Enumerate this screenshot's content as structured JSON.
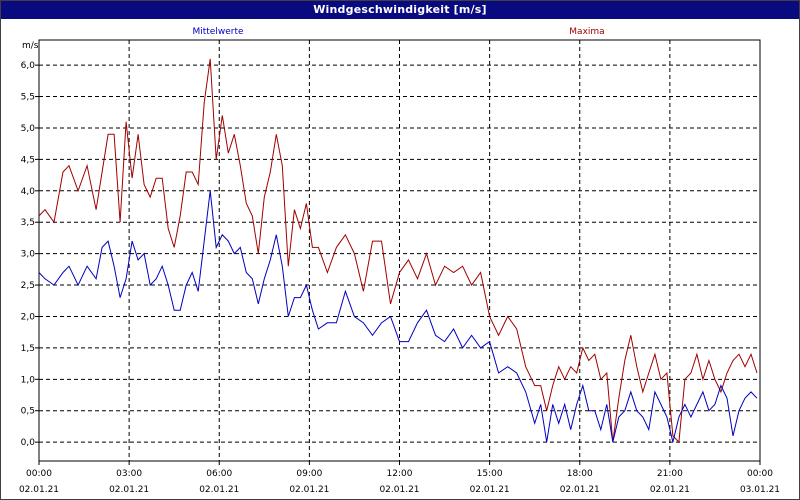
{
  "window": {
    "title": "Windgeschwindigkeit [m/s]"
  },
  "chart_data": {
    "type": "line",
    "title": "Windgeschwindigkeit [m/s]",
    "ylabel": "m/s",
    "xlabel": "",
    "ylim": [
      -0.3,
      6.4
    ],
    "grid": true,
    "legend_placement": "top",
    "y_ticks": [
      "0,0",
      "0,5",
      "1,0",
      "1,5",
      "2,0",
      "2,5",
      "3,0",
      "3,5",
      "4,0",
      "4,5",
      "5,0",
      "5,5",
      "6,0"
    ],
    "x_ticks": [
      {
        "time": "00:00",
        "date": "02.01.21"
      },
      {
        "time": "03:00",
        "date": "02.01.21"
      },
      {
        "time": "06:00",
        "date": "02.01.21"
      },
      {
        "time": "09:00",
        "date": "02.01.21"
      },
      {
        "time": "12:00",
        "date": "02.01.21"
      },
      {
        "time": "15:00",
        "date": "02.01.21"
      },
      {
        "time": "18:00",
        "date": "02.01.21"
      },
      {
        "time": "21:00",
        "date": "02.01.21"
      },
      {
        "time": "00:00",
        "date": "03.01.21"
      }
    ],
    "x_start": "02.01.21 00:00",
    "x_end": "03.01.21 00:00",
    "colors": {
      "mittelwerte": "#0000c0",
      "maxima": "#a00000",
      "grid": "#000000"
    },
    "series": [
      {
        "name": "Mittelwerte",
        "color": "#0000c0",
        "x_hours": [
          0,
          0.2,
          0.5,
          0.8,
          1.0,
          1.3,
          1.6,
          1.9,
          2.1,
          2.3,
          2.5,
          2.7,
          2.9,
          3.1,
          3.3,
          3.5,
          3.7,
          3.9,
          4.1,
          4.3,
          4.5,
          4.7,
          4.9,
          5.1,
          5.3,
          5.5,
          5.7,
          5.9,
          6.1,
          6.3,
          6.5,
          6.7,
          6.9,
          7.1,
          7.3,
          7.5,
          7.7,
          7.9,
          8.1,
          8.3,
          8.5,
          8.7,
          8.9,
          9.1,
          9.3,
          9.6,
          9.9,
          10.2,
          10.5,
          10.8,
          11.1,
          11.4,
          11.7,
          12.0,
          12.3,
          12.6,
          12.9,
          13.2,
          13.5,
          13.8,
          14.1,
          14.4,
          14.7,
          15.0,
          15.3,
          15.6,
          15.9,
          16.2,
          16.5,
          16.7,
          16.9,
          17.1,
          17.3,
          17.5,
          17.7,
          17.9,
          18.1,
          18.3,
          18.5,
          18.7,
          18.9,
          19.1,
          19.3,
          19.5,
          19.7,
          19.9,
          20.1,
          20.3,
          20.5,
          20.7,
          20.9,
          21.1,
          21.3,
          21.5,
          21.7,
          21.9,
          22.1,
          22.3,
          22.5,
          22.7,
          22.9,
          23.1,
          23.3,
          23.5,
          23.7,
          23.9
        ],
        "values": [
          2.7,
          2.6,
          2.5,
          2.7,
          2.8,
          2.5,
          2.8,
          2.6,
          3.1,
          3.2,
          2.8,
          2.3,
          2.6,
          3.2,
          2.9,
          3.0,
          2.5,
          2.6,
          2.8,
          2.5,
          2.1,
          2.1,
          2.5,
          2.7,
          2.4,
          3.2,
          4.0,
          3.1,
          3.3,
          3.2,
          3.0,
          3.1,
          2.7,
          2.6,
          2.2,
          2.6,
          2.9,
          3.3,
          2.8,
          2.0,
          2.3,
          2.3,
          2.5,
          2.1,
          1.8,
          1.9,
          1.9,
          2.4,
          2.0,
          1.9,
          1.7,
          1.9,
          2.0,
          1.6,
          1.6,
          1.9,
          2.1,
          1.7,
          1.6,
          1.8,
          1.5,
          1.7,
          1.5,
          1.6,
          1.1,
          1.2,
          1.1,
          0.8,
          0.3,
          0.6,
          0.0,
          0.6,
          0.3,
          0.6,
          0.2,
          0.6,
          0.9,
          0.5,
          0.5,
          0.2,
          0.6,
          0.0,
          0.4,
          0.5,
          0.8,
          0.5,
          0.4,
          0.2,
          0.8,
          0.6,
          0.4,
          0.0,
          0.4,
          0.6,
          0.4,
          0.6,
          0.8,
          0.5,
          0.6,
          0.9,
          0.7,
          0.1,
          0.5,
          0.7,
          0.8,
          0.7
        ]
      },
      {
        "name": "Maxima",
        "color": "#a00000",
        "x_hours": [
          0,
          0.2,
          0.5,
          0.8,
          1.0,
          1.3,
          1.6,
          1.9,
          2.1,
          2.3,
          2.5,
          2.7,
          2.9,
          3.1,
          3.3,
          3.5,
          3.7,
          3.9,
          4.1,
          4.3,
          4.5,
          4.7,
          4.9,
          5.1,
          5.3,
          5.5,
          5.7,
          5.9,
          6.1,
          6.3,
          6.5,
          6.7,
          6.9,
          7.1,
          7.3,
          7.5,
          7.7,
          7.9,
          8.1,
          8.3,
          8.5,
          8.7,
          8.9,
          9.1,
          9.3,
          9.6,
          9.9,
          10.2,
          10.5,
          10.8,
          11.1,
          11.4,
          11.7,
          12.0,
          12.3,
          12.6,
          12.9,
          13.2,
          13.5,
          13.8,
          14.1,
          14.4,
          14.7,
          15.0,
          15.3,
          15.6,
          15.9,
          16.2,
          16.5,
          16.7,
          16.9,
          17.1,
          17.3,
          17.5,
          17.7,
          17.9,
          18.1,
          18.3,
          18.5,
          18.7,
          18.9,
          19.1,
          19.3,
          19.5,
          19.7,
          19.9,
          20.1,
          20.3,
          20.5,
          20.7,
          20.9,
          21.1,
          21.3,
          21.5,
          21.7,
          21.9,
          22.1,
          22.3,
          22.5,
          22.7,
          22.9,
          23.1,
          23.3,
          23.5,
          23.7,
          23.9
        ],
        "values": [
          3.6,
          3.7,
          3.5,
          4.3,
          4.4,
          4.0,
          4.4,
          3.7,
          4.3,
          4.9,
          4.9,
          3.5,
          5.1,
          4.2,
          4.9,
          4.1,
          3.9,
          4.2,
          4.2,
          3.4,
          3.1,
          3.6,
          4.3,
          4.3,
          4.1,
          5.4,
          6.1,
          4.5,
          5.2,
          4.6,
          4.9,
          4.4,
          3.8,
          3.6,
          3.0,
          3.9,
          4.3,
          4.9,
          4.4,
          2.8,
          3.7,
          3.4,
          3.8,
          3.1,
          3.1,
          2.7,
          3.1,
          3.3,
          3.0,
          2.4,
          3.2,
          3.2,
          2.2,
          2.7,
          2.9,
          2.6,
          3.0,
          2.5,
          2.8,
          2.7,
          2.8,
          2.5,
          2.7,
          2.0,
          1.7,
          2.0,
          1.8,
          1.2,
          0.9,
          0.9,
          0.5,
          0.9,
          1.2,
          1.0,
          1.2,
          1.1,
          1.5,
          1.3,
          1.4,
          1.0,
          1.1,
          0.0,
          0.7,
          1.3,
          1.7,
          1.2,
          0.8,
          1.1,
          1.4,
          1.0,
          1.1,
          0.1,
          0.0,
          1.0,
          1.1,
          1.4,
          1.0,
          1.3,
          1.0,
          0.8,
          1.1,
          1.3,
          1.4,
          1.2,
          1.4,
          1.1
        ]
      }
    ]
  }
}
